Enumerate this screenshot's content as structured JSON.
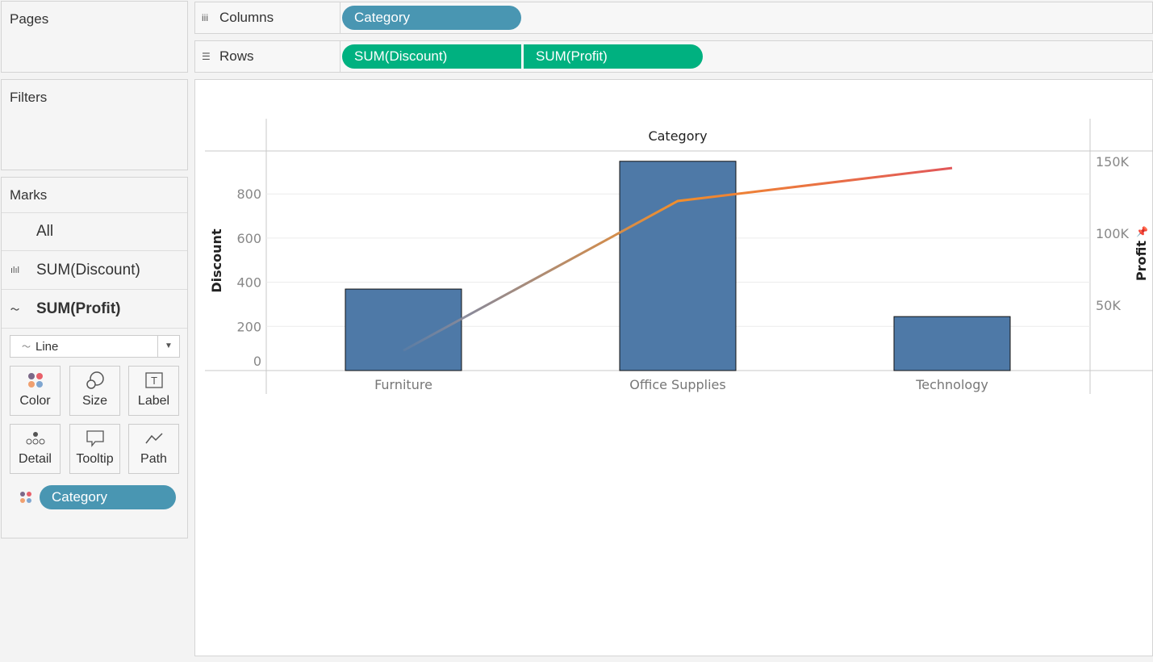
{
  "cards": {
    "pages": "Pages",
    "filters": "Filters",
    "marks": "Marks"
  },
  "shelves": {
    "columns": {
      "label": "Columns",
      "pills": [
        "Category"
      ]
    },
    "rows": {
      "label": "Rows",
      "pills": [
        "SUM(Discount)",
        "SUM(Profit)"
      ]
    }
  },
  "marks": {
    "items": [
      {
        "label": "All",
        "icon": ""
      },
      {
        "label": "SUM(Discount)",
        "icon": "bar-chart-icon"
      },
      {
        "label": "SUM(Profit)",
        "icon": "line-chart-icon",
        "active": true
      }
    ],
    "mark_type": "Line",
    "buttons": [
      "Color",
      "Size",
      "Label",
      "Detail",
      "Tooltip",
      "Path"
    ],
    "color_pill": "Category"
  },
  "chart_data": {
    "type": "bar+line",
    "column_header": "Category",
    "categories": [
      "Furniture",
      "Office Supplies",
      "Technology"
    ],
    "series": [
      {
        "name": "Discount",
        "type": "bar",
        "axis": "left",
        "values": [
          369.1,
          947.8,
          244.4
        ],
        "color": "#4e79a7"
      },
      {
        "name": "Profit",
        "type": "line",
        "axis": "right",
        "values": [
          18451,
          122491,
          145455
        ],
        "colors": [
          "#8a8a99",
          "#f28e2b",
          "#e15759"
        ]
      }
    ],
    "left_axis": {
      "label": "Discount",
      "ticks": [
        "0",
        "200",
        "400",
        "600",
        "800"
      ],
      "tick_values": [
        0,
        200,
        400,
        600,
        800
      ]
    },
    "right_axis": {
      "label": "Profit",
      "ticks": [
        "50K",
        "100K",
        "150K"
      ],
      "tick_values": [
        50000,
        100000,
        150000
      ]
    },
    "grid": true
  }
}
